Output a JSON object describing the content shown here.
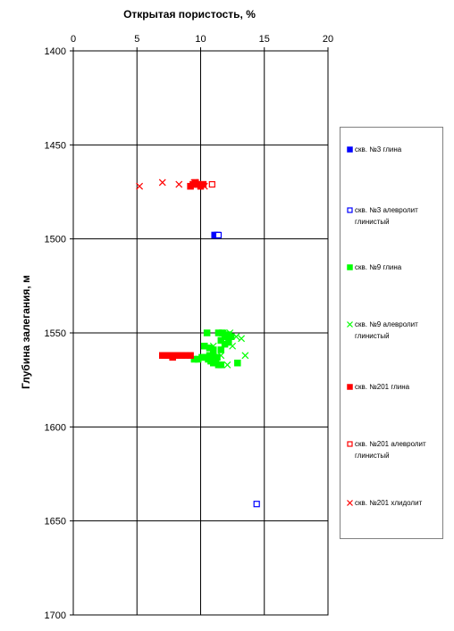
{
  "chart_data": {
    "type": "scatter",
    "title": "Открытая пористость,  %",
    "ylabel": "Глубина залегания, м",
    "xlim": [
      0,
      20
    ],
    "ylim": [
      1400,
      1700
    ],
    "y_inverted": true,
    "x_axis_position": "top",
    "x_ticks": [
      0,
      5,
      10,
      15,
      20
    ],
    "y_ticks": [
      1400,
      1450,
      1500,
      1550,
      1600,
      1650,
      1700
    ],
    "x_tick_labels": [
      "0",
      "5",
      "10",
      "15",
      "20"
    ],
    "y_tick_labels": [
      "1400",
      "1450",
      "1500",
      "1550",
      "1600",
      "1650",
      "1700"
    ],
    "grid": "major",
    "legend_position": "right",
    "series": [
      {
        "name": "скв. №3 глина",
        "marker": "filled-square",
        "color": "#0000ff",
        "points": [
          [
            11.1,
            1498
          ],
          [
            11.3,
            1498
          ]
        ]
      },
      {
        "name": "скв. №3 алевролит глинистый",
        "marker": "open-square",
        "color": "#0000ff",
        "points": [
          [
            11.4,
            1498
          ],
          [
            14.4,
            1641
          ]
        ]
      },
      {
        "name": "скв. №9 глина",
        "marker": "filled-square",
        "color": "#00ff00",
        "points": [
          [
            10.5,
            1550
          ],
          [
            11.4,
            1550
          ],
          [
            11.7,
            1550
          ],
          [
            11.9,
            1551
          ],
          [
            12.0,
            1552
          ],
          [
            12.2,
            1551
          ],
          [
            12.4,
            1552
          ],
          [
            11.6,
            1554
          ],
          [
            11.9,
            1556
          ],
          [
            12.2,
            1555
          ],
          [
            10.3,
            1557
          ],
          [
            10.7,
            1558
          ],
          [
            11.0,
            1559
          ],
          [
            11.6,
            1559
          ],
          [
            9.5,
            1564
          ],
          [
            9.8,
            1564
          ],
          [
            10.1,
            1563
          ],
          [
            10.4,
            1563
          ],
          [
            10.6,
            1564
          ],
          [
            10.8,
            1565
          ],
          [
            11.0,
            1566
          ],
          [
            11.2,
            1566
          ],
          [
            11.4,
            1567
          ],
          [
            11.6,
            1567
          ],
          [
            10.7,
            1562
          ],
          [
            11.0,
            1562
          ],
          [
            11.3,
            1563
          ],
          [
            12.9,
            1566
          ]
        ]
      },
      {
        "name": "скв. №9 алевролит глинистый",
        "marker": "x",
        "color": "#00ff00",
        "points": [
          [
            11.8,
            1550
          ],
          [
            12.3,
            1550
          ],
          [
            12.8,
            1552
          ],
          [
            13.2,
            1553
          ],
          [
            12.5,
            1557
          ],
          [
            13.5,
            1562
          ],
          [
            12.1,
            1567
          ],
          [
            11.0,
            1557
          ],
          [
            11.6,
            1562
          ]
        ]
      },
      {
        "name": "скв. №201 глина",
        "marker": "filled-square",
        "color": "#ff0000",
        "points": [
          [
            7.0,
            1562
          ],
          [
            7.2,
            1562
          ],
          [
            7.4,
            1562
          ],
          [
            7.6,
            1562
          ],
          [
            7.8,
            1563
          ],
          [
            8.0,
            1562
          ],
          [
            8.2,
            1562
          ],
          [
            8.5,
            1562
          ],
          [
            8.8,
            1562
          ],
          [
            9.2,
            1562
          ],
          [
            9.2,
            1472
          ],
          [
            9.4,
            1471
          ],
          [
            9.6,
            1470
          ],
          [
            9.8,
            1471
          ],
          [
            10.0,
            1472
          ],
          [
            10.2,
            1471
          ]
        ]
      },
      {
        "name": "скв. №201 алевролит глинистый",
        "marker": "open-square",
        "color": "#ff0000",
        "points": [
          [
            10.9,
            1471
          ]
        ]
      },
      {
        "name": "скв. №201 хлидолит",
        "marker": "x",
        "color": "#ff0000",
        "points": [
          [
            5.2,
            1472
          ],
          [
            7.0,
            1470
          ],
          [
            8.3,
            1471
          ],
          [
            9.5,
            1470
          ],
          [
            10.3,
            1472
          ]
        ]
      }
    ]
  }
}
